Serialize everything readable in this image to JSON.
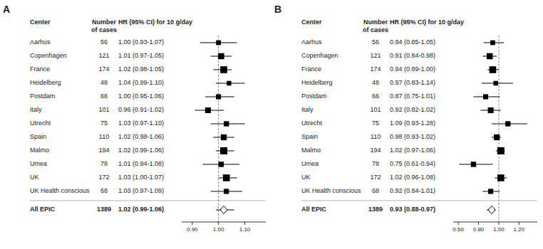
{
  "chart_data": [
    {
      "type": "forest",
      "title": "A",
      "headers": [
        "Center",
        "Number",
        "of cases",
        "HR (95% CI) for 10 g/day"
      ],
      "categories": [
        "Aarhus",
        "Copenhagen",
        "France",
        "Heidelberg",
        "Postdam",
        "Italy",
        "Utrecht",
        "Spain",
        "Malmo",
        "Umea",
        "UK",
        "UK Health conscious"
      ],
      "values": [
        1.0,
        1.01,
        1.02,
        1.04,
        1.0,
        0.96,
        1.03,
        1.02,
        1.02,
        1.01,
        1.03,
        1.03
      ],
      "ci_lo": [
        0.93,
        0.97,
        0.98,
        0.99,
        0.95,
        0.91,
        0.97,
        0.98,
        0.99,
        0.94,
        1.0,
        0.97
      ],
      "ci_hi": [
        1.07,
        1.05,
        1.05,
        1.1,
        1.06,
        1.02,
        1.1,
        1.06,
        1.06,
        1.08,
        1.07,
        1.09
      ],
      "n_cases": [
        56,
        121,
        174,
        48,
        66,
        101,
        75,
        110,
        194,
        78,
        172,
        68
      ],
      "value_labels": [
        "1.00 (0.93-1.07)",
        "1.01 (0.97-1.05)",
        "1.02 (0.98-1.05)",
        "1.04 (0.99-1.10)",
        "1.00 (0.95-1.06)",
        "0.96 (0.91-1.02)",
        "1.03 (0.97-1.10)",
        "1.02 (0.98-1.06)",
        "1.02 (0.99-1.06)",
        "1.01 (0.94-1.08)",
        "1.03 (1.00-1.07)",
        "1.03 (0.97-1.09)"
      ],
      "summary": {
        "name": "All EPIC",
        "value": 1.02,
        "ci_lo": 0.99,
        "ci_hi": 1.06,
        "n_cases": 1389,
        "value_label": "1.02 (0.99-1.06)"
      },
      "reference_line": 1,
      "xlim": [
        0.86,
        1.18
      ],
      "xticks": [
        {
          "value": 0.9,
          "label": "0.90"
        },
        {
          "value": 1.0,
          "label": "1.00"
        },
        {
          "value": 1.1,
          "label": "1.10"
        }
      ],
      "color": "#000000"
    },
    {
      "type": "forest",
      "title": "B",
      "headers": [
        "Center",
        "Number",
        "of cases",
        "HR (95% CI) for 10 g/day"
      ],
      "categories": [
        "Aarhus",
        "Copenhagen",
        "France",
        "Heidelberg",
        "Postdam",
        "Italy",
        "Utrecht",
        "Spain",
        "Malmo",
        "Umea",
        "UK",
        "UK Health conscious"
      ],
      "values": [
        0.94,
        0.91,
        0.94,
        0.97,
        0.87,
        0.92,
        1.09,
        0.98,
        1.02,
        0.75,
        1.02,
        0.92
      ],
      "ci_lo": [
        0.85,
        0.84,
        0.89,
        0.83,
        0.75,
        0.82,
        0.93,
        0.93,
        0.97,
        0.61,
        0.96,
        0.84
      ],
      "ci_hi": [
        1.05,
        0.98,
        1.0,
        1.14,
        1.01,
        1.02,
        1.28,
        1.02,
        1.06,
        0.94,
        1.08,
        1.01
      ],
      "n_cases": [
        56,
        121,
        174,
        48,
        66,
        101,
        75,
        110,
        194,
        78,
        172,
        68
      ],
      "value_labels": [
        "0.94 (0.85-1.05)",
        "0.91 (0.84-0.98)",
        "0.94 (0.89-1.00)",
        "0.97 (0.83-1.14)",
        "0.87 (0.75-1.01)",
        "0.92 (0.82-1.02)",
        "1.09 (0.93-1.28)",
        "0.98 (0.93-1.02)",
        "1.02 (0.97-1.06)",
        "0.75 (0.61-0.94)",
        "1.02 (0.96-1.08)",
        "0.92 (0.84-1.01)"
      ],
      "summary": {
        "name": "All EPIC",
        "value": 0.93,
        "ci_lo": 0.88,
        "ci_hi": 0.97,
        "n_cases": 1389,
        "value_label": "0.93 (0.88-0.97)"
      },
      "reference_line": 1,
      "xlim": [
        0.55,
        1.38
      ],
      "xticks": [
        {
          "value": 0.6,
          "label": "0.60"
        },
        {
          "value": 0.8,
          "label": "0.80"
        },
        {
          "value": 1.0,
          "label": "1.00"
        },
        {
          "value": 1.2,
          "label": "1.20"
        }
      ],
      "color": "#000000"
    }
  ]
}
